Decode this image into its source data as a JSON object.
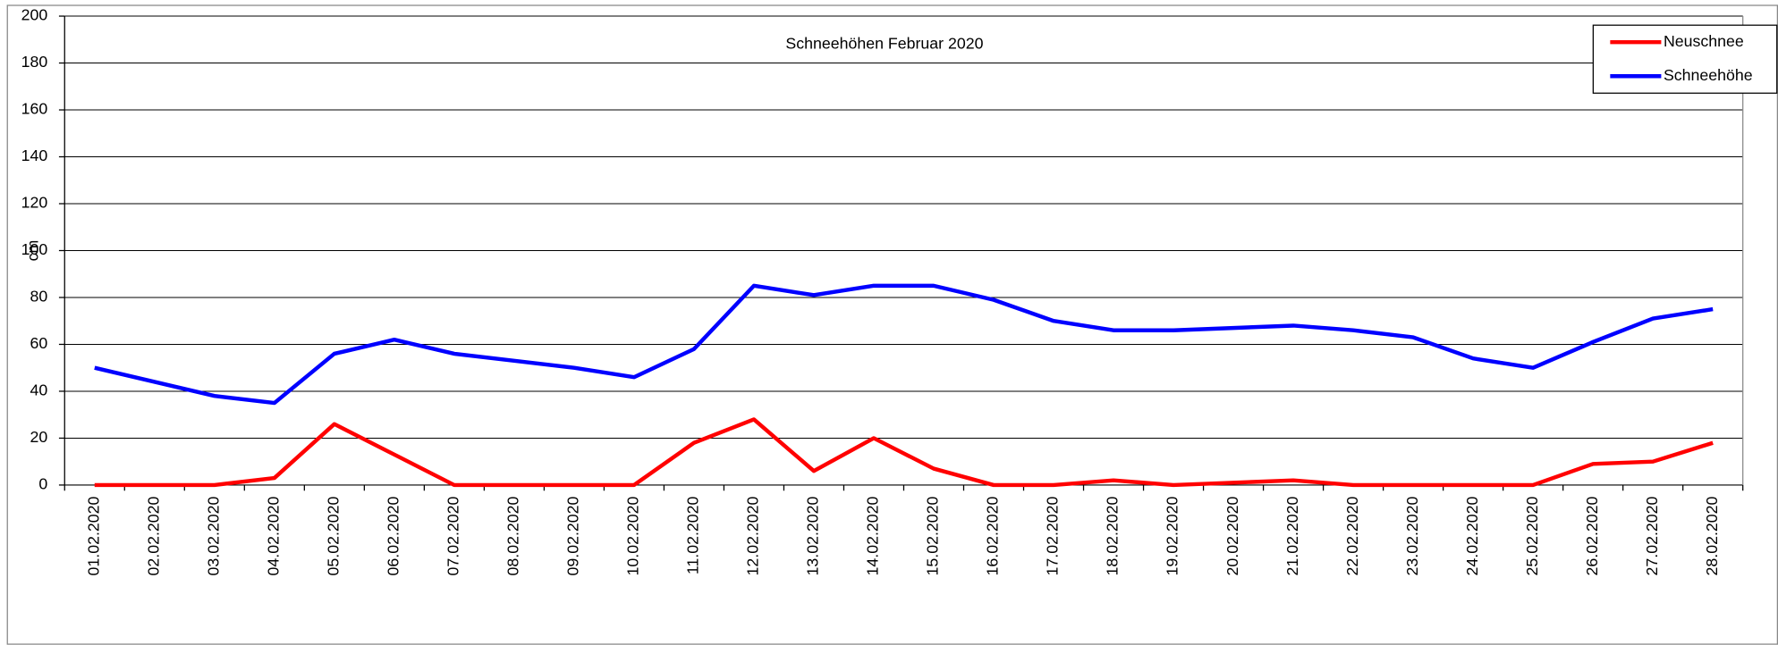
{
  "chart_data": {
    "type": "line",
    "title": "Schneehöhen Februar 2020",
    "y_label": "cm",
    "categories": [
      "01.02.2020",
      "02.02.2020",
      "03.02.2020",
      "04.02.2020",
      "05.02.2020",
      "06.02.2020",
      "07.02.2020",
      "08.02.2020",
      "09.02.2020",
      "10.02.2020",
      "11.02.2020",
      "12.02.2020",
      "13.02.2020",
      "14.02.2020",
      "15.02.2020",
      "16.02.2020",
      "17.02.2020",
      "18.02.2020",
      "19.02.2020",
      "20.02.2020",
      "21.02.2020",
      "22.02.2020",
      "23.02.2020",
      "24.02.2020",
      "25.02.2020",
      "26.02.2020",
      "27.02.2020",
      "28.02.2020"
    ],
    "series": [
      {
        "name": "Neuschnee",
        "color": "#ff0000",
        "values": [
          0,
          0,
          0,
          3,
          26,
          13,
          0,
          0,
          0,
          0,
          18,
          28,
          6,
          20,
          7,
          0,
          0,
          2,
          0,
          1,
          2,
          0,
          0,
          0,
          0,
          9,
          10,
          18
        ]
      },
      {
        "name": "Schneehöhe",
        "color": "#0000ff",
        "values": [
          50,
          44,
          38,
          35,
          56,
          62,
          56,
          53,
          50,
          46,
          58,
          85,
          81,
          85,
          85,
          79,
          70,
          66,
          66,
          67,
          68,
          66,
          63,
          54,
          50,
          61,
          71,
          75
        ]
      }
    ],
    "ylim": [
      0,
      200
    ],
    "yticks": [
      0,
      20,
      40,
      60,
      80,
      100,
      120,
      140,
      160,
      180,
      200
    ],
    "grid": true,
    "legend": "top-right"
  }
}
